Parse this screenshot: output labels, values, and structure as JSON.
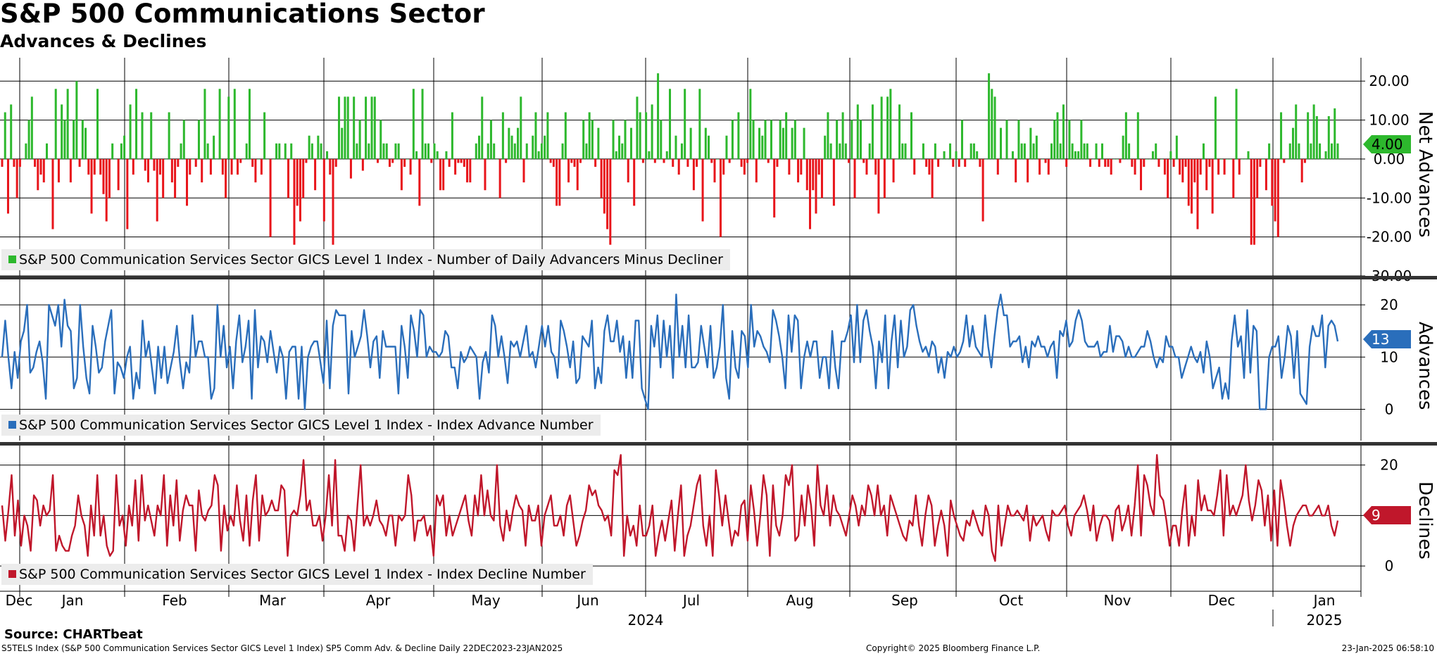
{
  "header": {
    "title": "S&P 500 Communications Sector",
    "subtitle": "Advances & Declines"
  },
  "footer": {
    "source": "Source: CHARTbeat",
    "description": "S5TELS Index (S&P 500 Communication Services Sector GICS Level 1 Index) SP5 Comm Adv. & Decline  Daily 22DEC2023-23JAN2025",
    "copyright": "Copyright© 2025 Bloomberg Finance L.P.",
    "timestamp": "23-Jan-2025 06:58:10"
  },
  "colors": {
    "positive": "#2db82d",
    "negative": "#e8141a",
    "advances": "#2a6ebb",
    "declines": "#c0172b",
    "legend_bg": "#ececec"
  },
  "chart_data": [
    {
      "type": "bar",
      "title": "Net Advances",
      "legend": "S&P 500 Communication Services Sector GICS Level 1 Index - Number of Daily Advancers Minus Decliner",
      "ylabel": "Net Advances",
      "ylim": [
        -30,
        26
      ],
      "ytick_values": [
        20,
        10,
        0,
        -10,
        -20,
        -30
      ],
      "ytick_labels": [
        "20.00",
        "10.00",
        "0.00",
        "-10.00",
        "-20.00",
        "-30.00"
      ],
      "last_value": 4,
      "last_label": "4.00",
      "values": [
        -2,
        12,
        -14,
        14,
        -2,
        -10,
        -2,
        0,
        4,
        10,
        16,
        -2,
        -8,
        -4,
        -6,
        4,
        0,
        -18,
        18,
        -6,
        14,
        10,
        18,
        -6,
        10,
        20,
        -2,
        10,
        8,
        -4,
        -14,
        -4,
        18,
        -4,
        -9,
        -16,
        -10,
        4,
        0,
        -8,
        4,
        6,
        -18,
        14,
        -4,
        18,
        0,
        12,
        -3,
        -6,
        12,
        -3,
        -16,
        -4,
        -10,
        0,
        12,
        -6,
        -10,
        -2,
        4,
        10,
        -12,
        -4,
        0,
        -2,
        10,
        -6,
        18,
        4,
        -4,
        6,
        0,
        18,
        -4,
        -10,
        16,
        -4,
        18,
        -4,
        -1,
        0,
        4,
        18,
        -2,
        -6,
        0,
        -4,
        12,
        0,
        -20,
        0,
        4,
        4,
        0,
        4,
        -10,
        4,
        -22,
        -12,
        -16,
        -10,
        -1,
        6,
        4,
        -8,
        6,
        4,
        -16,
        2,
        -4,
        -22,
        -2,
        16,
        8,
        16,
        16,
        -5,
        16,
        4,
        10,
        -3,
        16,
        4,
        16,
        16,
        -1,
        10,
        4,
        4,
        -2,
        -1,
        4,
        4,
        -8,
        -2,
        0,
        -4,
        18,
        2,
        -12,
        18,
        4,
        4,
        -1,
        4,
        2,
        -8,
        -8,
        2,
        -2,
        12,
        -4,
        -1,
        -1,
        -2,
        -6,
        -6,
        0,
        4,
        6,
        16,
        -8,
        4,
        10,
        4,
        0,
        -10,
        12,
        -1,
        8,
        6,
        4,
        8,
        16,
        -6,
        4,
        0,
        6,
        12,
        2,
        4,
        6,
        12,
        -1,
        -2,
        -12,
        -12,
        4,
        12,
        -6,
        -1,
        -2,
        -8,
        -1,
        10,
        4,
        12,
        10,
        -2,
        8,
        -10,
        -14,
        -18,
        -22,
        10,
        2,
        6,
        4,
        10,
        -6,
        8,
        -12,
        16,
        12,
        -1,
        12,
        2,
        14,
        -1,
        22,
        10,
        -1,
        2,
        18,
        -2,
        6,
        -4,
        4,
        18,
        -2,
        8,
        -8,
        -2,
        18,
        -16,
        8,
        6,
        -1,
        -6,
        0,
        -20,
        -4,
        6,
        -1,
        10,
        0,
        12,
        -2,
        -4,
        -1,
        18,
        10,
        -6,
        8,
        6,
        10,
        -1,
        10,
        -15,
        -2,
        10,
        8,
        12,
        -4,
        8,
        10,
        -6,
        -4,
        8,
        -8,
        -18,
        -8,
        -14,
        -4,
        -10,
        6,
        12,
        4,
        -12,
        10,
        4,
        12,
        4,
        -1,
        10,
        -10,
        14,
        10,
        -1,
        -4,
        4,
        14,
        -4,
        -14,
        16,
        -10,
        16,
        18,
        -6,
        0,
        14,
        4,
        4,
        0,
        12,
        -4,
        0,
        0,
        4,
        -2,
        -4,
        -10,
        4,
        -2,
        0,
        2,
        0,
        4,
        -2,
        2,
        -2,
        10,
        -2,
        0,
        4,
        4,
        2,
        -2,
        -16,
        0,
        22,
        18,
        16,
        -4,
        8,
        0,
        10,
        0,
        2,
        -6,
        10,
        4,
        4,
        -6,
        8,
        4,
        6,
        -4,
        0,
        -1,
        -4,
        4,
        10,
        12,
        4,
        14,
        -2,
        10,
        4,
        2,
        2,
        10,
        4,
        4,
        -2,
        0,
        4,
        -2,
        4,
        -2,
        -2,
        -4,
        0,
        0,
        -1,
        6,
        12,
        4,
        -2,
        -4,
        12,
        -8,
        -2,
        0,
        0,
        2,
        4,
        -2,
        0,
        -4,
        -10,
        2,
        -2,
        6,
        -4,
        -6,
        -2,
        -12,
        -14,
        -6,
        -18,
        -4,
        4,
        -8,
        -2,
        -14,
        16,
        -4,
        0,
        -4,
        0,
        0,
        -10,
        18,
        -4,
        0,
        0,
        2,
        -22,
        -22,
        -10,
        -2,
        0,
        -8,
        4,
        -12,
        -16,
        -20,
        12,
        -1,
        0,
        4,
        8,
        14,
        4,
        -6,
        -1,
        12,
        4,
        14,
        11,
        4,
        0,
        2,
        11,
        4,
        13,
        4
      ]
    },
    {
      "type": "line",
      "title": "Advances",
      "legend": "S&P 500 Communication Services Sector GICS Level 1 Index - Index Advance Number",
      "ylabel": "Advances",
      "ylim": [
        -6,
        25
      ],
      "ytick_values": [
        20,
        10,
        0
      ],
      "ytick_labels": [
        "20",
        "10",
        "0"
      ],
      "last_value": 13,
      "last_label": "13",
      "values": [
        10,
        17,
        10,
        4,
        11,
        6,
        13,
        15,
        20,
        7,
        8,
        11,
        13,
        9,
        2,
        20,
        18,
        16,
        20,
        12,
        21,
        16,
        15,
        4,
        6,
        20,
        12,
        6,
        3,
        16,
        12,
        7,
        8,
        13,
        16,
        19,
        3,
        9,
        8,
        6,
        10,
        12,
        2,
        7,
        4,
        17,
        10,
        13,
        8,
        3,
        12,
        6,
        12,
        5,
        8,
        11,
        16,
        9,
        4,
        9,
        7,
        18,
        10,
        13,
        13,
        10,
        10,
        2,
        4,
        20,
        10,
        16,
        8,
        12,
        4,
        13,
        18,
        9,
        12,
        17,
        2,
        19,
        8,
        14,
        13,
        9,
        15,
        11,
        7,
        12,
        10,
        2,
        11,
        12,
        12,
        2,
        12,
        0,
        10,
        12,
        13,
        13,
        9,
        5,
        17,
        4,
        16,
        19,
        18,
        18,
        18,
        3,
        15,
        10,
        12,
        14,
        19,
        14,
        8,
        13,
        14,
        6,
        15,
        12,
        12,
        12,
        12,
        3,
        16,
        12,
        6,
        18,
        15,
        10,
        19,
        18,
        10,
        12,
        11,
        11,
        10,
        11,
        15,
        14,
        8,
        8,
        4,
        11,
        9,
        10,
        12,
        11,
        10,
        2,
        9,
        11,
        7,
        18,
        16,
        10,
        14,
        10,
        5,
        13,
        12,
        13,
        10,
        13,
        16,
        10,
        11,
        8,
        12,
        16,
        12,
        16,
        11,
        10,
        6,
        17,
        15,
        12,
        8,
        13,
        5,
        6,
        14,
        13,
        12,
        17,
        4,
        8,
        5,
        15,
        18,
        13,
        13,
        17,
        11,
        14,
        6,
        13,
        6,
        17,
        17,
        4,
        2,
        0,
        16,
        12,
        18,
        8,
        17,
        10,
        16,
        6,
        22,
        10,
        16,
        8,
        18,
        8,
        8,
        9,
        16,
        12,
        8,
        16,
        6,
        8,
        12,
        20,
        6,
        2,
        15,
        8,
        6,
        15,
        14,
        8,
        20,
        12,
        15,
        14,
        12,
        11,
        9,
        19,
        17,
        14,
        10,
        4,
        18,
        11,
        18,
        17,
        4,
        10,
        13,
        10,
        13,
        13,
        6,
        10,
        10,
        4,
        15,
        8,
        4,
        13,
        13,
        15,
        18,
        9,
        20,
        9,
        17,
        19,
        15,
        12,
        4,
        13,
        9,
        18,
        4,
        13,
        18,
        8,
        17,
        10,
        12,
        19,
        20,
        16,
        13,
        11,
        12,
        10,
        13,
        12,
        7,
        10,
        6,
        11,
        10,
        12,
        10,
        11,
        13,
        18,
        12,
        16,
        12,
        11,
        10,
        18,
        12,
        8,
        14,
        19,
        22,
        18,
        18,
        12,
        13,
        13,
        14,
        9,
        12,
        8,
        13,
        12,
        14,
        12,
        12,
        10,
        12,
        13,
        6,
        15,
        14,
        17,
        12,
        13,
        17,
        19,
        17,
        13,
        12,
        12,
        12,
        13,
        10,
        11,
        11,
        16,
        11,
        14,
        14,
        13,
        10,
        12,
        10,
        10,
        11,
        12,
        12,
        15,
        13,
        10,
        8,
        10,
        9,
        14,
        12,
        12,
        10,
        10,
        6,
        8,
        10,
        12,
        10,
        9,
        11,
        7,
        13,
        10,
        4,
        6,
        8,
        2,
        5,
        2,
        13,
        18,
        12,
        14,
        6,
        19,
        7,
        16,
        15,
        0,
        0,
        0,
        10,
        12,
        12,
        14,
        6,
        10,
        16,
        14,
        6,
        15,
        3,
        2,
        1,
        12,
        16,
        14,
        14,
        18,
        8,
        16,
        17,
        16,
        13
      ]
    },
    {
      "type": "line",
      "title": "Declines",
      "legend": "S&P 500 Communication Services Sector GICS Level 1 Index - Index Decline Number",
      "ylabel": "Declines",
      "ylim": [
        -5,
        24
      ],
      "ytick_values": [
        20,
        10,
        0
      ],
      "ytick_labels": [
        "20",
        "10",
        "0"
      ],
      "last_value": 9,
      "last_label": "9",
      "values": [
        12,
        5,
        11,
        18,
        6,
        13,
        4,
        10,
        8,
        3,
        14,
        13,
        8,
        12,
        10,
        11,
        18,
        3,
        6,
        4,
        3,
        3,
        6,
        8,
        14,
        10,
        8,
        2,
        12,
        6,
        18,
        6,
        10,
        4,
        2,
        3,
        18,
        8,
        10,
        4,
        12,
        8,
        17,
        5,
        18,
        9,
        12,
        9,
        6,
        12,
        10,
        18,
        4,
        14,
        8,
        17,
        5,
        11,
        14,
        12,
        12,
        3,
        15,
        10,
        9,
        11,
        12,
        18,
        16,
        3,
        12,
        7,
        10,
        8,
        16,
        9,
        5,
        14,
        4,
        13,
        18,
        5,
        14,
        10,
        11,
        13,
        11,
        11,
        16,
        15,
        2,
        10,
        11,
        10,
        14,
        21,
        11,
        13,
        8,
        8,
        10,
        5,
        10,
        18,
        8,
        21,
        6,
        6,
        3,
        10,
        9,
        3,
        12,
        20,
        8,
        10,
        8,
        10,
        13,
        9,
        8,
        6,
        10,
        10,
        4,
        10,
        9,
        10,
        18,
        14,
        5,
        9,
        9,
        10,
        6,
        8,
        2,
        14,
        12,
        14,
        6,
        10,
        6,
        8,
        10,
        12,
        14,
        9,
        6,
        14,
        10,
        18,
        10,
        15,
        10,
        9,
        20,
        8,
        5,
        11,
        7,
        11,
        14,
        12,
        11,
        4,
        12,
        9,
        9,
        12,
        4,
        10,
        12,
        14,
        8,
        8,
        10,
        6,
        12,
        14,
        9,
        4,
        6,
        9,
        11,
        16,
        14,
        15,
        12,
        11,
        9,
        10,
        6,
        19,
        18,
        22,
        2,
        10,
        6,
        8,
        4,
        12,
        6,
        6,
        8,
        12,
        2,
        6,
        9,
        5,
        9,
        13,
        3,
        10,
        16,
        2,
        6,
        8,
        12,
        16,
        18,
        8,
        4,
        10,
        2,
        19,
        14,
        8,
        14,
        9,
        4,
        7,
        6,
        12,
        13,
        5,
        16,
        11,
        4,
        10,
        18,
        14,
        2,
        16,
        8,
        6,
        10,
        18,
        16,
        20,
        5,
        6,
        14,
        8,
        16,
        12,
        4,
        20,
        12,
        10,
        16,
        8,
        14,
        11,
        10,
        8,
        6,
        10,
        14,
        12,
        8,
        12,
        10,
        16,
        14,
        10,
        16,
        10,
        12,
        6,
        14,
        12,
        10,
        8,
        6,
        5,
        9,
        8,
        14,
        8,
        4,
        10,
        14,
        12,
        4,
        8,
        11,
        8,
        2,
        13,
        10,
        8,
        6,
        5,
        9,
        8,
        11,
        9,
        7,
        6,
        12,
        10,
        3,
        1,
        12,
        4,
        8,
        12,
        10,
        10,
        11,
        10,
        9,
        12,
        5,
        10,
        8,
        9,
        10,
        7,
        5,
        11,
        10,
        10,
        11,
        12,
        8,
        6,
        10,
        11,
        12,
        14,
        11,
        7,
        12,
        5,
        8,
        10,
        10,
        9,
        5,
        11,
        12,
        7,
        9,
        12,
        6,
        12,
        20,
        6,
        18,
        16,
        12,
        10,
        22,
        14,
        13,
        9,
        4,
        8,
        8,
        4,
        11,
        16,
        4,
        10,
        6,
        17,
        11,
        14,
        11,
        11,
        10,
        14,
        19,
        6,
        18,
        10,
        12,
        10,
        12,
        14,
        20,
        13,
        9,
        12,
        17,
        15,
        8,
        14,
        5,
        15,
        4,
        17,
        13,
        8,
        4,
        8,
        10,
        11,
        12,
        12,
        10,
        10,
        11,
        12,
        10,
        10,
        12,
        8,
        6,
        9
      ]
    }
  ],
  "x_axis": {
    "months": [
      "Dec",
      "Jan",
      "Feb",
      "Mar",
      "Apr",
      "May",
      "Jun",
      "Jul",
      "Aug",
      "Sep",
      "Oct",
      "Nov",
      "Dec",
      "Jan"
    ],
    "years": [
      "2024",
      "2025"
    ]
  }
}
